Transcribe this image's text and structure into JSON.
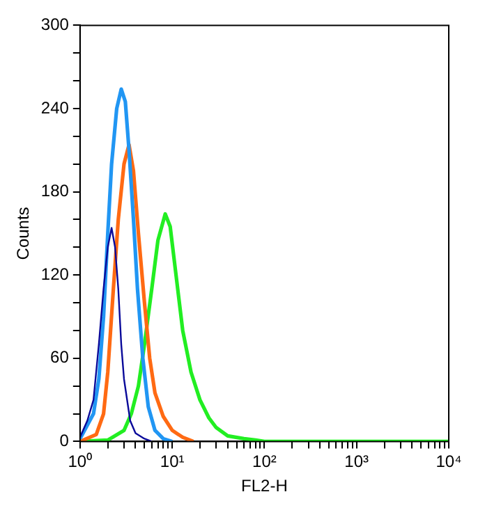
{
  "chart_data": {
    "type": "line",
    "xlabel": "FL2-H",
    "ylabel": "Counts",
    "log": "x",
    "grid": false,
    "legend": false,
    "marker": "none",
    "line_style": "solid",
    "xlim": [
      1,
      10000
    ],
    "ylim": [
      0,
      300
    ],
    "xticks": [
      {
        "value": 1,
        "label": "10⁰"
      },
      {
        "value": 2,
        "label": null
      },
      {
        "value": 3,
        "label": null
      },
      {
        "value": 4,
        "label": null
      },
      {
        "value": 5,
        "label": null
      },
      {
        "value": 6,
        "label": null
      },
      {
        "value": 7,
        "label": null
      },
      {
        "value": 8,
        "label": null
      },
      {
        "value": 9,
        "label": null
      },
      {
        "value": 10,
        "label": "10¹"
      },
      {
        "value": 20,
        "label": null
      },
      {
        "value": 30,
        "label": null
      },
      {
        "value": 40,
        "label": null
      },
      {
        "value": 50,
        "label": null
      },
      {
        "value": 60,
        "label": null
      },
      {
        "value": 70,
        "label": null
      },
      {
        "value": 80,
        "label": null
      },
      {
        "value": 90,
        "label": null
      },
      {
        "value": 100,
        "label": "10²"
      },
      {
        "value": 200,
        "label": null
      },
      {
        "value": 300,
        "label": null
      },
      {
        "value": 400,
        "label": null
      },
      {
        "value": 500,
        "label": null
      },
      {
        "value": 600,
        "label": null
      },
      {
        "value": 700,
        "label": null
      },
      {
        "value": 800,
        "label": null
      },
      {
        "value": 900,
        "label": null
      },
      {
        "value": 1000,
        "label": "10³"
      },
      {
        "value": 2000,
        "label": null
      },
      {
        "value": 3000,
        "label": null
      },
      {
        "value": 4000,
        "label": null
      },
      {
        "value": 5000,
        "label": null
      },
      {
        "value": 6000,
        "label": null
      },
      {
        "value": 7000,
        "label": null
      },
      {
        "value": 8000,
        "label": null
      },
      {
        "value": 9000,
        "label": null
      },
      {
        "value": 10000,
        "label": "10⁴"
      }
    ],
    "yticks": [
      0,
      {
        "value": 20,
        "label": null
      },
      {
        "value": 40,
        "label": null
      },
      60,
      {
        "value": 80,
        "label": null
      },
      {
        "value": 100,
        "label": null
      },
      120,
      {
        "value": 140,
        "label": null
      },
      {
        "value": 160,
        "label": null
      },
      180,
      {
        "value": 200,
        "label": null
      },
      {
        "value": 220,
        "label": null
      },
      240,
      {
        "value": 260,
        "label": null
      },
      {
        "value": 280,
        "label": null
      },
      300
    ],
    "series": [
      {
        "color": "#0a0a9a",
        "x": [
          1,
          1.2,
          1.4,
          1.6,
          1.8,
          2.0,
          2.2,
          2.4,
          2.6,
          2.8,
          3.0,
          3.5,
          4,
          5,
          6
        ],
        "values": [
          3,
          15,
          30,
          70,
          110,
          140,
          154,
          140,
          110,
          70,
          45,
          15,
          6,
          2,
          0
        ]
      },
      {
        "color": "#2196f3",
        "x": [
          1,
          1.4,
          1.6,
          1.8,
          2.0,
          2.2,
          2.5,
          2.8,
          3.1,
          3.4,
          3.8,
          4.2,
          4.8,
          5.5,
          6.5,
          8,
          10
        ],
        "values": [
          2,
          20,
          45,
          90,
          150,
          200,
          240,
          254,
          245,
          210,
          160,
          110,
          60,
          25,
          8,
          2,
          0
        ]
      },
      {
        "color": "#ff6a13",
        "x": [
          1,
          1.5,
          1.8,
          2.0,
          2.3,
          2.6,
          3.0,
          3.4,
          3.8,
          4.3,
          5,
          5.7,
          6.5,
          8,
          10,
          13,
          17
        ],
        "values": [
          0,
          5,
          20,
          50,
          110,
          160,
          200,
          214,
          195,
          150,
          100,
          60,
          35,
          18,
          8,
          3,
          0
        ]
      },
      {
        "color": "#22ee22",
        "x": [
          1,
          2,
          3,
          3.6,
          4.3,
          5,
          6,
          7,
          8.4,
          9.5,
          11,
          13,
          16,
          20,
          25,
          30,
          40,
          60,
          80,
          100,
          10000
        ],
        "values": [
          0,
          1,
          8,
          20,
          40,
          70,
          110,
          145,
          164,
          155,
          120,
          80,
          50,
          30,
          17,
          10,
          4,
          2,
          1,
          0,
          0
        ]
      }
    ]
  }
}
